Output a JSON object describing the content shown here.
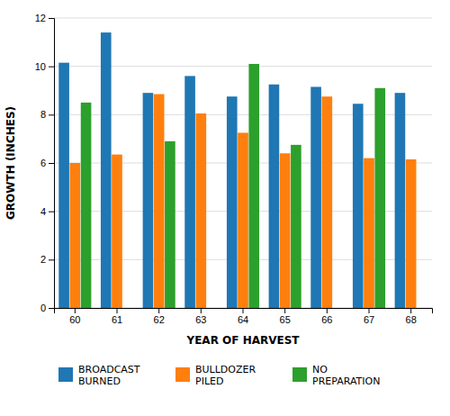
{
  "chart_data": {
    "type": "bar",
    "categories": [
      "60",
      "61",
      "62",
      "63",
      "64",
      "65",
      "66",
      "67",
      "68"
    ],
    "series": [
      {
        "name": "BROADCAST\nBURNED",
        "values": [
          10.15,
          11.4,
          8.9,
          9.6,
          8.75,
          9.25,
          9.15,
          8.45,
          8.9
        ]
      },
      {
        "name": "BULLDOZER\nPILED",
        "values": [
          6.0,
          6.35,
          8.85,
          8.05,
          7.25,
          6.4,
          8.75,
          6.2,
          6.15
        ]
      },
      {
        "name": "NO\nPREPARATION",
        "values": [
          8.5,
          null,
          6.9,
          null,
          10.1,
          6.75,
          null,
          9.1,
          null
        ]
      }
    ],
    "xlabel": "YEAR OF HARVEST",
    "ylabel": "GROWTH (INCHES)",
    "ylim": [
      0,
      12
    ],
    "yticks": [
      0,
      2,
      4,
      6,
      8,
      10,
      12
    ],
    "grid": true,
    "legend": "bottom"
  }
}
